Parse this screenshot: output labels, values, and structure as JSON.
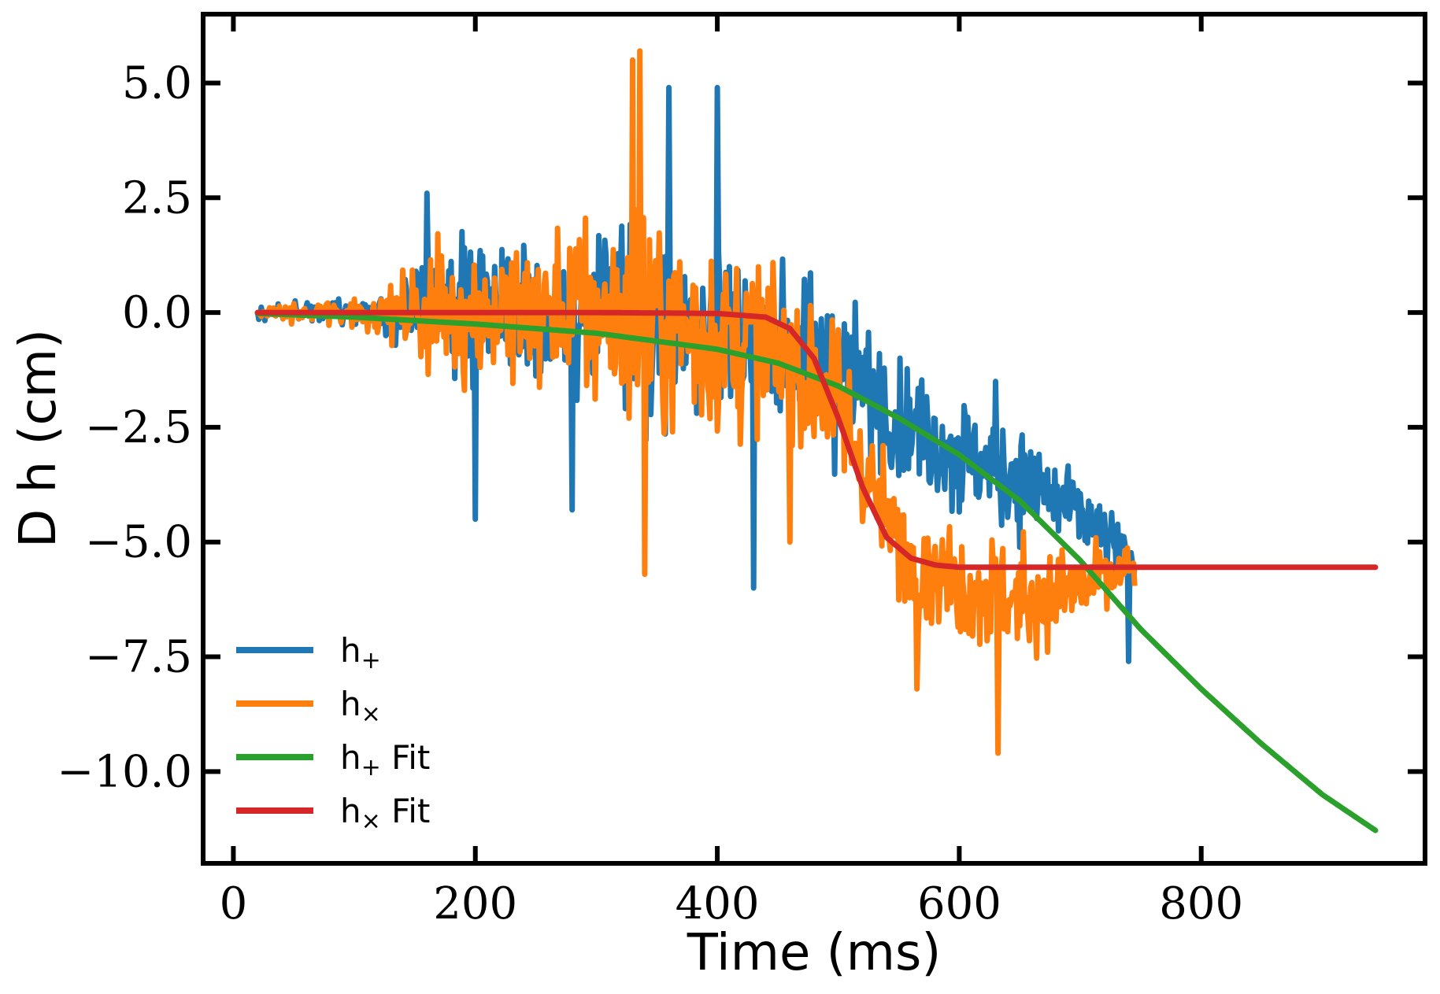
{
  "chart_data": {
    "type": "line",
    "title": "",
    "xlabel": "Time (ms)",
    "ylabel": "D h (cm)",
    "xlim": [
      -25,
      985
    ],
    "ylim": [
      -12.0,
      6.5
    ],
    "xticks": [
      0,
      200,
      400,
      600,
      800
    ],
    "xtick_labels": [
      "0",
      "200",
      "400",
      "600",
      "800"
    ],
    "yticks": [
      5.0,
      2.5,
      0.0,
      -2.5,
      -5.0,
      -7.5,
      -10.0
    ],
    "ytick_labels": [
      "5.0",
      "2.5",
      "0.0",
      "−2.5",
      "−5.0",
      "−7.5",
      "−10.0"
    ],
    "grid": false,
    "legend_position": "bottom-left",
    "series": [
      {
        "name": "h+",
        "label_main": "h",
        "label_sub": "+",
        "label_suffix": "",
        "color": "#1f77b4",
        "kind": "noisy",
        "t_start": 20,
        "t_end": 745,
        "envelope": {
          "t": [
            20,
            120,
            160,
            200,
            300,
            350,
            400,
            450,
            500,
            550,
            600,
            650,
            700,
            745
          ],
          "amp": [
            0.25,
            0.5,
            1.6,
            2.3,
            2.8,
            3.4,
            3.2,
            2.6,
            2.4,
            2.0,
            2.0,
            1.8,
            1.3,
            1.0
          ]
        },
        "trend": {
          "t": [
            20,
            150,
            300,
            420,
            480,
            520,
            560,
            600,
            650,
            700,
            745
          ],
          "h": [
            0.0,
            0.0,
            0.0,
            -0.3,
            -1.0,
            -1.6,
            -2.4,
            -3.1,
            -3.6,
            -4.4,
            -5.5
          ]
        },
        "peaks": [
          [
            360,
            4.9
          ],
          [
            400,
            4.9
          ],
          [
            430,
            -6.0
          ],
          [
            160,
            2.6
          ],
          [
            200,
            -4.5
          ],
          [
            280,
            -4.3
          ],
          [
            630,
            -1.5
          ],
          [
            740,
            -7.6
          ]
        ]
      },
      {
        "name": "h×",
        "label_main": "h",
        "label_sub": "×",
        "label_suffix": "",
        "color": "#ff7f0e",
        "kind": "noisy",
        "t_start": 20,
        "t_end": 745,
        "envelope": {
          "t": [
            20,
            120,
            160,
            200,
            300,
            340,
            400,
            460,
            500,
            540,
            600,
            650,
            700,
            745
          ],
          "amp": [
            0.2,
            0.6,
            1.8,
            2.4,
            3.0,
            4.0,
            3.4,
            2.8,
            2.4,
            1.8,
            1.9,
            1.9,
            1.3,
            1.0
          ]
        },
        "trend": {
          "t": [
            20,
            150,
            300,
            420,
            470,
            500,
            520,
            540,
            560,
            600,
            650,
            700,
            745
          ],
          "h": [
            0.0,
            0.0,
            0.0,
            -0.6,
            -1.3,
            -2.0,
            -3.3,
            -4.6,
            -5.3,
            -5.9,
            -6.3,
            -6.0,
            -5.6
          ]
        },
        "peaks": [
          [
            336,
            5.7
          ],
          [
            330,
            5.5
          ],
          [
            632,
            -9.6
          ],
          [
            565,
            -8.2
          ],
          [
            340,
            -5.7
          ],
          [
            460,
            -5.0
          ]
        ]
      },
      {
        "name": "h+ Fit",
        "label_main": "h",
        "label_sub": "+",
        "label_suffix": " Fit",
        "color": "#2ca02c",
        "kind": "smooth",
        "x": [
          20,
          100,
          200,
          300,
          400,
          450,
          500,
          550,
          600,
          650,
          700,
          750,
          800,
          850,
          900,
          945
        ],
        "y": [
          -0.02,
          -0.1,
          -0.25,
          -0.45,
          -0.8,
          -1.1,
          -1.6,
          -2.3,
          -3.1,
          -4.1,
          -5.4,
          -6.9,
          -8.2,
          -9.4,
          -10.5,
          -11.3
        ]
      },
      {
        "name": "h× Fit",
        "label_main": "h",
        "label_sub": "×",
        "label_suffix": " Fit",
        "color": "#d62728",
        "kind": "smooth",
        "x": [
          20,
          100,
          200,
          300,
          400,
          440,
          460,
          480,
          500,
          520,
          540,
          560,
          580,
          600,
          650,
          700,
          800,
          945
        ],
        "y": [
          0.0,
          0.0,
          0.0,
          0.0,
          -0.02,
          -0.1,
          -0.35,
          -1.0,
          -2.3,
          -3.8,
          -4.9,
          -5.35,
          -5.5,
          -5.55,
          -5.55,
          -5.55,
          -5.55,
          -5.55
        ]
      }
    ]
  }
}
